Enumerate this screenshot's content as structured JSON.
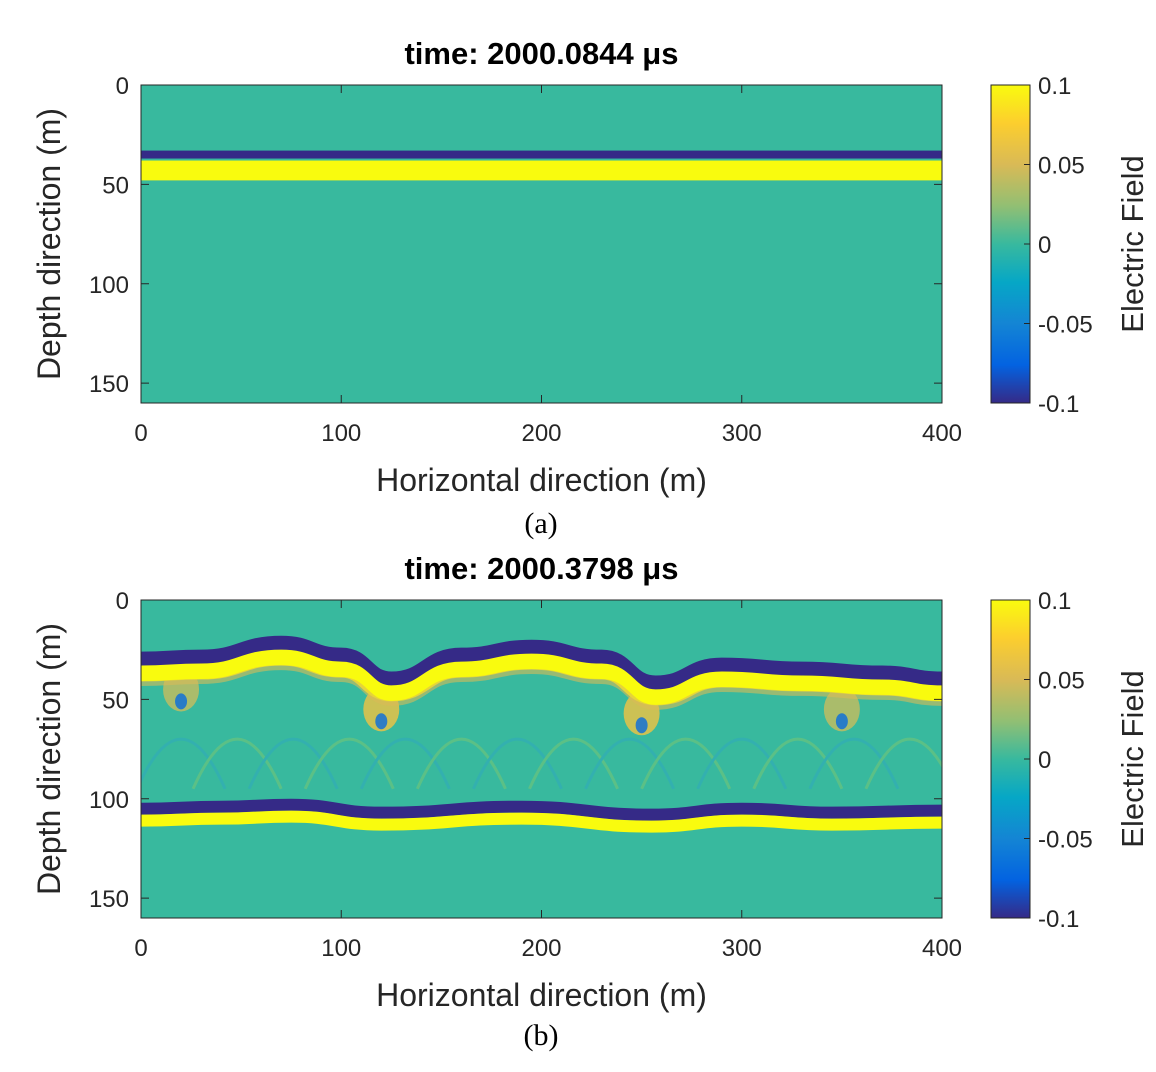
{
  "chart_data": [
    {
      "type": "heatmap",
      "panel_label": "(a)",
      "title": "time: 2000.0844 μs",
      "xlabel": "Horizontal direction (m)",
      "ylabel": "Depth direction (m)",
      "xlim": [
        0,
        400
      ],
      "ylim": [
        0,
        160
      ],
      "y_reversed": true,
      "xticks": [
        "0",
        "100",
        "200",
        "300",
        "400"
      ],
      "yticks": [
        "0",
        "50",
        "100",
        "150"
      ],
      "colorbar": {
        "label": "Electric Field",
        "ticks": [
          "-0.1",
          "-0.05",
          "0",
          "0.05",
          "0.1"
        ],
        "clim": [
          -0.1,
          0.1
        ]
      },
      "colormap": "parula",
      "background_value": 0,
      "bands": [
        {
          "kind": "flat",
          "value": -0.1,
          "depth_top": 33,
          "depth_bottom": 37
        },
        {
          "kind": "flat",
          "value": 0.1,
          "depth_top": 38,
          "depth_bottom": 48
        }
      ]
    },
    {
      "type": "heatmap",
      "panel_label": "(b)",
      "title": "time: 2000.3798 μs",
      "xlabel": "Horizontal direction (m)",
      "ylabel": "Depth direction (m)",
      "xlim": [
        0,
        400
      ],
      "ylim": [
        0,
        160
      ],
      "y_reversed": true,
      "xticks": [
        "0",
        "100",
        "200",
        "300",
        "400"
      ],
      "yticks": [
        "0",
        "50",
        "100",
        "150"
      ],
      "colorbar": {
        "label": "Electric Field",
        "ticks": [
          "-0.1",
          "-0.05",
          "0",
          "0.05",
          "0.1"
        ],
        "clim": [
          -0.1,
          0.1
        ]
      },
      "colormap": "parula",
      "background_value": 0,
      "upper_front": {
        "x": [
          0,
          30,
          70,
          100,
          125,
          160,
          195,
          230,
          257,
          290,
          330,
          370,
          400
        ],
        "depth": [
          30,
          29,
          22,
          28,
          40,
          28,
          24,
          29,
          42,
          33,
          35,
          37,
          40
        ]
      },
      "lower_front": {
        "x": [
          0,
          40,
          75,
          120,
          190,
          255,
          300,
          345,
          400
        ],
        "depth": [
          105,
          104,
          103,
          107,
          104,
          108,
          105,
          107,
          106
        ]
      },
      "hotspots": [
        {
          "x": 120,
          "depth": 55,
          "value": 0.06
        },
        {
          "x": 250,
          "depth": 57,
          "value": 0.06
        },
        {
          "x": 20,
          "depth": 45,
          "value": 0.04
        },
        {
          "x": 350,
          "depth": 55,
          "value": 0.04
        }
      ]
    }
  ]
}
